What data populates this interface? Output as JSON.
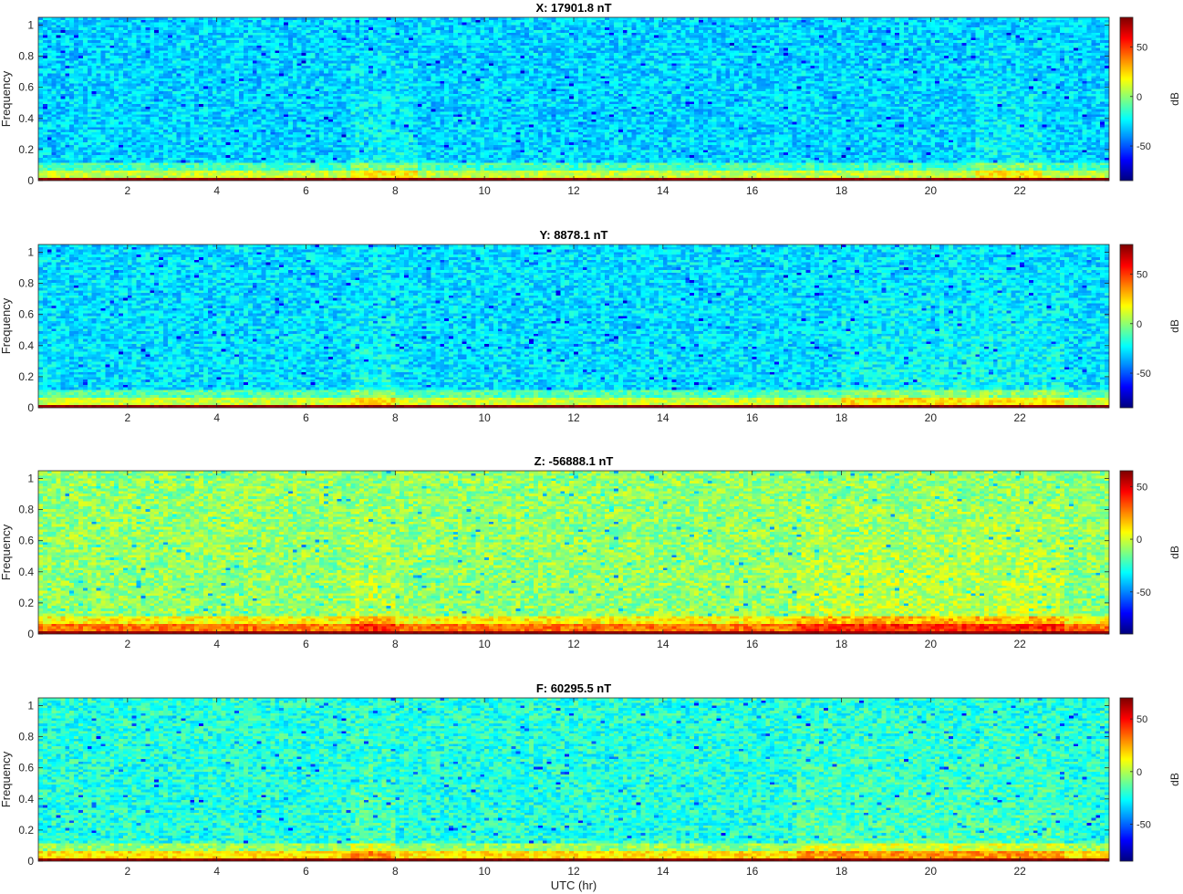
{
  "chart_data": [
    {
      "type": "heatmap",
      "title": "X: 17901.8 nT",
      "ylabel": "Frequency",
      "xlabel": "",
      "colorbar_label": "dB",
      "xlim": [
        0,
        24
      ],
      "ylim": [
        0,
        1.05
      ],
      "xticks": [
        2,
        4,
        6,
        8,
        10,
        12,
        14,
        16,
        18,
        20,
        22
      ],
      "yticks": [
        0,
        0.2,
        0.4,
        0.6,
        0.8,
        1
      ],
      "clim": [
        -85,
        80
      ],
      "colorbar_ticks": [
        50,
        0,
        -50
      ],
      "colormap": "jet",
      "background_level_db": -30,
      "low_frequency_band_db": 80,
      "enhanced_activity_hours": [
        [
          7,
          8.5
        ],
        [
          21,
          22.5
        ]
      ]
    },
    {
      "type": "heatmap",
      "title": "Y: 8878.1 nT",
      "ylabel": "Frequency",
      "xlabel": "",
      "colorbar_label": "dB",
      "xlim": [
        0,
        24
      ],
      "ylim": [
        0,
        1.05
      ],
      "xticks": [
        2,
        4,
        6,
        8,
        10,
        12,
        14,
        16,
        18,
        20,
        22
      ],
      "yticks": [
        0,
        0.2,
        0.4,
        0.6,
        0.8,
        1
      ],
      "clim": [
        -85,
        80
      ],
      "colorbar_ticks": [
        50,
        0,
        -50
      ],
      "colormap": "jet",
      "background_level_db": -28,
      "low_frequency_band_db": 80,
      "enhanced_activity_hours": [
        [
          7,
          8
        ],
        [
          18,
          23
        ]
      ]
    },
    {
      "type": "heatmap",
      "title": "Z: -56888.1 nT",
      "ylabel": "Frequency",
      "xlabel": "",
      "colorbar_label": "dB",
      "xlim": [
        0,
        24
      ],
      "ylim": [
        0,
        1.05
      ],
      "xticks": [
        2,
        4,
        6,
        8,
        10,
        12,
        14,
        16,
        18,
        20,
        22
      ],
      "yticks": [
        0,
        0.2,
        0.4,
        0.6,
        0.8,
        1
      ],
      "clim": [
        -90,
        65
      ],
      "colorbar_ticks": [
        50,
        0,
        -50
      ],
      "colormap": "jet",
      "background_level_db": -10,
      "low_frequency_band_db": 65,
      "enhanced_activity_hours": [
        [
          7,
          8
        ],
        [
          17,
          23
        ]
      ]
    },
    {
      "type": "heatmap",
      "title": "F: 60295.5 nT",
      "ylabel": "Frequency",
      "xlabel": "UTC (hr)",
      "colorbar_label": "dB",
      "xlim": [
        0,
        24
      ],
      "ylim": [
        0,
        1.05
      ],
      "xticks": [
        2,
        4,
        6,
        8,
        10,
        12,
        14,
        16,
        18,
        20,
        22
      ],
      "yticks": [
        0,
        0.2,
        0.4,
        0.6,
        0.8,
        1
      ],
      "clim": [
        -85,
        70
      ],
      "colorbar_ticks": [
        50,
        0,
        -50
      ],
      "colormap": "jet",
      "background_level_db": -22,
      "low_frequency_band_db": 70,
      "enhanced_activity_hours": [
        [
          7,
          8
        ],
        [
          17,
          23
        ]
      ]
    }
  ]
}
